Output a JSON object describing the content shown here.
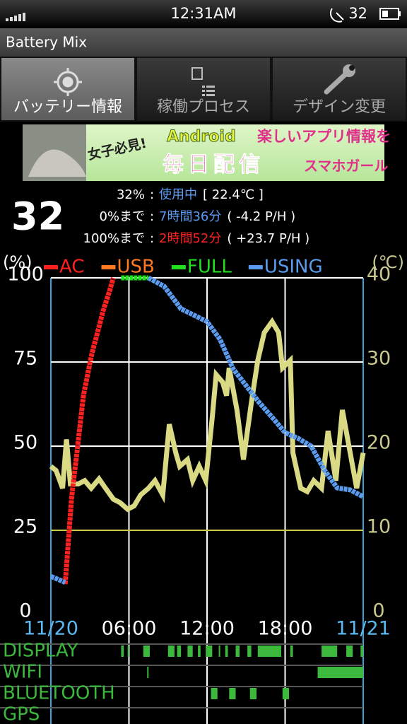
{
  "status_bar": {
    "time": "12:31AM",
    "battery": "32"
  },
  "app_title": "Battery Mix",
  "tabs": [
    "バッテリー情報",
    "稼働プロセス",
    "デザイン変更"
  ],
  "banner": {
    "tag": "女子必見!",
    "brand": "Android",
    "headline": "楽しいアプリ情報を",
    "subline": "毎日配信",
    "name": "スマホガール"
  },
  "summary": {
    "level": "32",
    "separator": ":",
    "status_label": "32%",
    "status": "使用中",
    "temperature": "[ 22.4℃ ]",
    "empty_label": "0%まで",
    "empty_time": "7時間36分",
    "empty_rate": "( -4.2 P/H )",
    "full_label": "100%まで",
    "full_time": "2時間52分",
    "full_rate": "( +23.7 P/H )"
  },
  "chart_data": {
    "type": "line",
    "y_label": "(%)",
    "y2_label": "(℃)",
    "xlim": [
      0,
      24
    ],
    "xticks": [
      {
        "value": 0,
        "label": "11/20"
      },
      {
        "value": 6,
        "label": "06:00"
      },
      {
        "value": 12,
        "label": "12:00"
      },
      {
        "value": 18,
        "label": "18:00"
      },
      {
        "value": 24,
        "label": "11/21"
      }
    ],
    "ylim": [
      0,
      100
    ],
    "yticks": [
      0,
      25,
      50,
      75,
      100
    ],
    "y2lim": [
      0,
      40
    ],
    "y2ticks": [
      0,
      10,
      20,
      30,
      40
    ],
    "grid": true,
    "reference_line": {
      "value": 25,
      "color": "#c8c84a"
    },
    "series": [
      {
        "name": "AC",
        "color": "#ff2020",
        "x": [
          1.1,
          1.6,
          2.0,
          2.5,
          3.15,
          3.6,
          4.0,
          4.5,
          4.8
        ],
        "values": [
          9,
          35,
          48,
          65,
          77.5,
          84,
          90,
          96,
          100
        ]
      },
      {
        "name": "USB",
        "color": "#ff7a20",
        "x": [],
        "values": []
      },
      {
        "name": "FULL",
        "color": "#20e020",
        "x": [
          5.4,
          7.5
        ],
        "values": [
          100,
          100
        ]
      },
      {
        "name": "USING",
        "color": "#5b9bf0",
        "x": [
          0,
          0.5,
          1.1,
          4,
          7.5,
          8.7,
          10,
          12,
          13,
          14,
          15,
          16,
          17,
          18,
          19,
          20,
          21,
          22,
          23,
          24
        ],
        "values": [
          11.3,
          10.5,
          9.5,
          null,
          100,
          97.5,
          90.8,
          87,
          81.7,
          73,
          68,
          63,
          58.6,
          54,
          52.3,
          50,
          43,
          37.6,
          37,
          35
        ]
      },
      {
        "color": "#dada84",
        "axis": "y2",
        "x": [
          0,
          0.4,
          0.9,
          1.2,
          1.5,
          2.1,
          2.6,
          3.1,
          3.7,
          4.2,
          4.8,
          5.3,
          5.9,
          6.4,
          6.9,
          7.5,
          8.0,
          8.6,
          9.1,
          9.6,
          9.9,
          10.5,
          10.9,
          11.4,
          11.9,
          12.4,
          12.7,
          13.2,
          13.5,
          13.7,
          14.3,
          14.8,
          15.4,
          15.9,
          16.4,
          17.0,
          17.5,
          17.8,
          18.4,
          18.6,
          19.2,
          19.7,
          20.2,
          20.8,
          21.3,
          21.9,
          22.4,
          23.0,
          23.5,
          24
        ],
        "values": [
          17.6,
          17.1,
          15.0,
          20.8,
          15.5,
          15.5,
          15.9,
          15.0,
          16.1,
          15.0,
          13.7,
          13.3,
          12.5,
          12.9,
          14.2,
          15.0,
          15.9,
          14.2,
          22.6,
          19.2,
          17.6,
          18.4,
          15.9,
          17.6,
          15.9,
          23.4,
          28.5,
          27.6,
          26.0,
          29.3,
          24.3,
          18.4,
          25.1,
          30.2,
          33.5,
          34.8,
          33.5,
          29.3,
          30.2,
          19.2,
          15.0,
          14.6,
          15.9,
          15.0,
          21.8,
          15.9,
          24.3,
          19.2,
          15.0,
          19.2
        ]
      }
    ],
    "activity": [
      {
        "name": "DISPLAY",
        "color": "#3cb83c",
        "intervals": [
          [
            5.4,
            5.6
          ],
          [
            5.9,
            6.0
          ],
          [
            7.1,
            7.6
          ],
          [
            9.0,
            9.5
          ],
          [
            9.7,
            10.0
          ],
          [
            10.5,
            10.9
          ],
          [
            11.3,
            11.5
          ],
          [
            11.9,
            12.4
          ],
          [
            12.9,
            13.0
          ],
          [
            13.4,
            13.6
          ],
          [
            14.2,
            14.5
          ],
          [
            15.1,
            15.4
          ],
          [
            15.9,
            17.7
          ],
          [
            18.4,
            18.6
          ],
          [
            20.8,
            22.0
          ],
          [
            22.7,
            23.2
          ],
          [
            23.8,
            24
          ]
        ]
      },
      {
        "name": "WIFI",
        "color": "#3cb83c",
        "intervals": [
          [
            7.4,
            7.5
          ],
          [
            20.5,
            24
          ]
        ]
      },
      {
        "name": "BLUETOOTH",
        "color": "#3cb83c",
        "intervals": [
          [
            12.3,
            12.8
          ],
          [
            13.7,
            14.2
          ],
          [
            15.3,
            15.8
          ],
          [
            17.8,
            18.3
          ]
        ]
      },
      {
        "name": "GPS",
        "color": "#3cb83c",
        "intervals": []
      }
    ]
  }
}
